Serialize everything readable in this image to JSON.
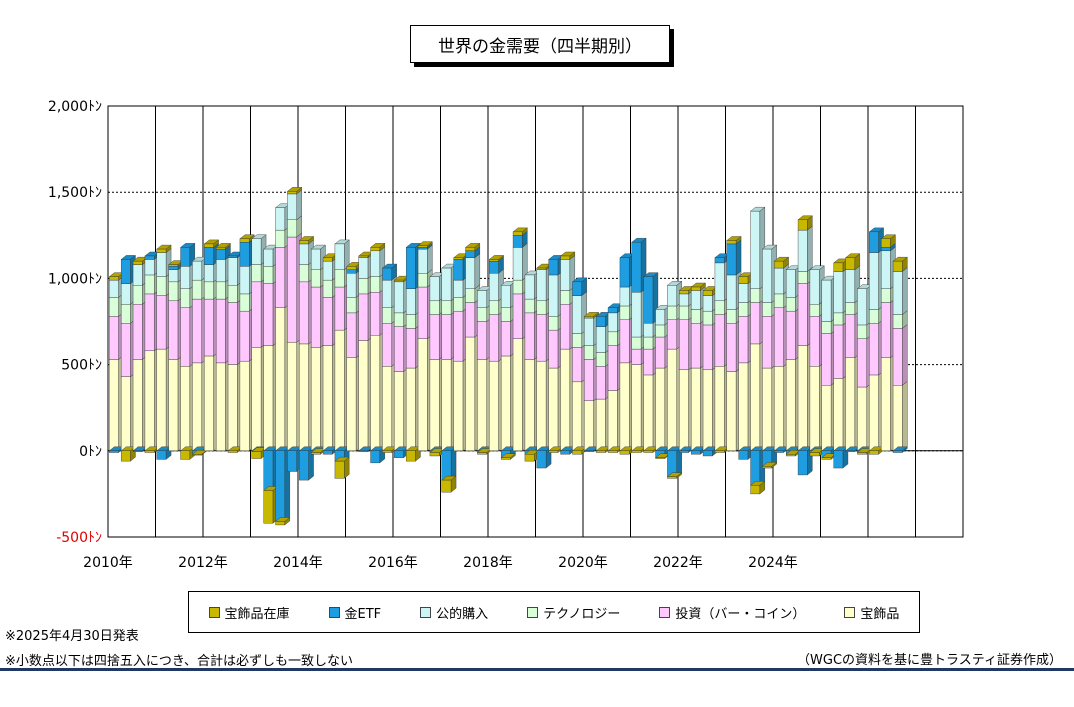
{
  "chart_data": {
    "type": "bar",
    "stacked": true,
    "title": "世界の金需要（四半期別）",
    "ylim": [
      -500,
      2000
    ],
    "yticks": [
      {
        "value": 2000,
        "label": "2,000ﾄﾝ"
      },
      {
        "value": 1500,
        "label": "1,500ﾄﾝ"
      },
      {
        "value": 1000,
        "label": "1,000ﾄﾝ"
      },
      {
        "value": 500,
        "label": "500ﾄﾝ"
      },
      {
        "value": 0,
        "label": "0ﾄﾝ"
      },
      {
        "value": -500,
        "label": "-500ﾄﾝ"
      }
    ],
    "xtick_labels": [
      "2010年",
      "2012年",
      "2014年",
      "2016年",
      "2018年",
      "2020年",
      "2022年",
      "2024年"
    ],
    "period_start_year": 2010,
    "quarters_per_year": 4,
    "grid": true,
    "legend_position": "bottom",
    "series": [
      {
        "name": "宝飾品在庫",
        "color": "#c9b800",
        "values": [
          20,
          -60,
          20,
          -10,
          20,
          10,
          -50,
          -5,
          20,
          10,
          -10,
          20,
          -40,
          -190,
          -20,
          15,
          20,
          -10,
          20,
          -100,
          20,
          10,
          20,
          -10,
          10,
          -60,
          10,
          -20,
          -70,
          10,
          20,
          -10,
          10,
          -10,
          20,
          -40,
          10,
          -10,
          20,
          -20,
          10,
          -10,
          -10,
          -20,
          -10,
          -10,
          -5,
          -10,
          20,
          20,
          30,
          -10,
          20,
          40,
          -50,
          -10,
          40,
          -10,
          60,
          -20,
          -10,
          50,
          70,
          -10,
          -20,
          50,
          60
        ]
      },
      {
        "name": "金ETF",
        "color": "#1e9ee0",
        "values": [
          -10,
          140,
          -5,
          20,
          -50,
          20,
          110,
          -20,
          100,
          60,
          10,
          140,
          -5,
          -230,
          -410,
          -120,
          -170,
          -10,
          -20,
          -60,
          20,
          -5,
          -70,
          70,
          -40,
          240,
          10,
          -10,
          -170,
          120,
          40,
          -10,
          70,
          -40,
          70,
          -20,
          -100,
          90,
          -20,
          80,
          -5,
          60,
          30,
          170,
          290,
          270,
          -40,
          -150,
          -10,
          -20,
          -30,
          30,
          180,
          -50,
          -200,
          -90,
          -10,
          -20,
          -140,
          -10,
          -40,
          -100,
          -5,
          -10,
          120,
          20,
          -10
        ]
      },
      {
        "name": "公的購入",
        "color": "#ccf5f5",
        "values": [
          100,
          120,
          120,
          90,
          140,
          70,
          130,
          110,
          100,
          130,
          160,
          160,
          150,
          100,
          130,
          150,
          120,
          120,
          110,
          150,
          140,
          120,
          150,
          160,
          180,
          150,
          140,
          140,
          190,
          100,
          180,
          100,
          160,
          130,
          190,
          140,
          180,
          240,
          180,
          220,
          160,
          150,
          110,
          110,
          260,
          80,
          90,
          120,
          70,
          110,
          90,
          220,
          200,
          110,
          450,
          310,
          150,
          160,
          240,
          200,
          240,
          240,
          190,
          210,
          330,
          220,
          250
        ]
      },
      {
        "name": "テクノロジー",
        "color": "#d9ffd9",
        "values": [
          110,
          110,
          110,
          110,
          110,
          110,
          110,
          110,
          100,
          100,
          100,
          100,
          100,
          100,
          100,
          100,
          100,
          100,
          100,
          100,
          90,
          90,
          90,
          90,
          80,
          80,
          80,
          80,
          80,
          80,
          80,
          80,
          80,
          80,
          80,
          80,
          80,
          80,
          80,
          80,
          80,
          80,
          80,
          80,
          70,
          70,
          70,
          80,
          80,
          80,
          80,
          80,
          80,
          80,
          80,
          80,
          80,
          80,
          70,
          70,
          70,
          70,
          70,
          80,
          80,
          80,
          80
        ]
      },
      {
        "name": "投資（バー・コイン）",
        "color": "#ffc8ff",
        "values": [
          250,
          310,
          320,
          330,
          310,
          340,
          340,
          370,
          330,
          370,
          360,
          290,
          380,
          360,
          350,
          610,
          360,
          350,
          280,
          250,
          260,
          270,
          250,
          250,
          260,
          230,
          300,
          260,
          260,
          290,
          200,
          220,
          270,
          200,
          260,
          270,
          270,
          220,
          260,
          200,
          240,
          190,
          260,
          250,
          90,
          150,
          180,
          170,
          290,
          260,
          260,
          300,
          280,
          270,
          240,
          300,
          340,
          280,
          360,
          290,
          300,
          310,
          250,
          280,
          300,
          320,
          330
        ]
      },
      {
        "name": "宝飾品",
        "color": "#ffffcc",
        "values": [
          530,
          430,
          530,
          580,
          590,
          530,
          490,
          510,
          550,
          510,
          500,
          520,
          600,
          610,
          830,
          630,
          620,
          600,
          610,
          700,
          540,
          640,
          670,
          490,
          460,
          480,
          650,
          530,
          530,
          520,
          660,
          530,
          520,
          550,
          650,
          530,
          520,
          480,
          590,
          400,
          290,
          300,
          350,
          510,
          500,
          440,
          480,
          590,
          470,
          480,
          470,
          490,
          460,
          510,
          620,
          480,
          490,
          530,
          610,
          490,
          380,
          420,
          540,
          370,
          440,
          540,
          380
        ]
      }
    ]
  }
}
